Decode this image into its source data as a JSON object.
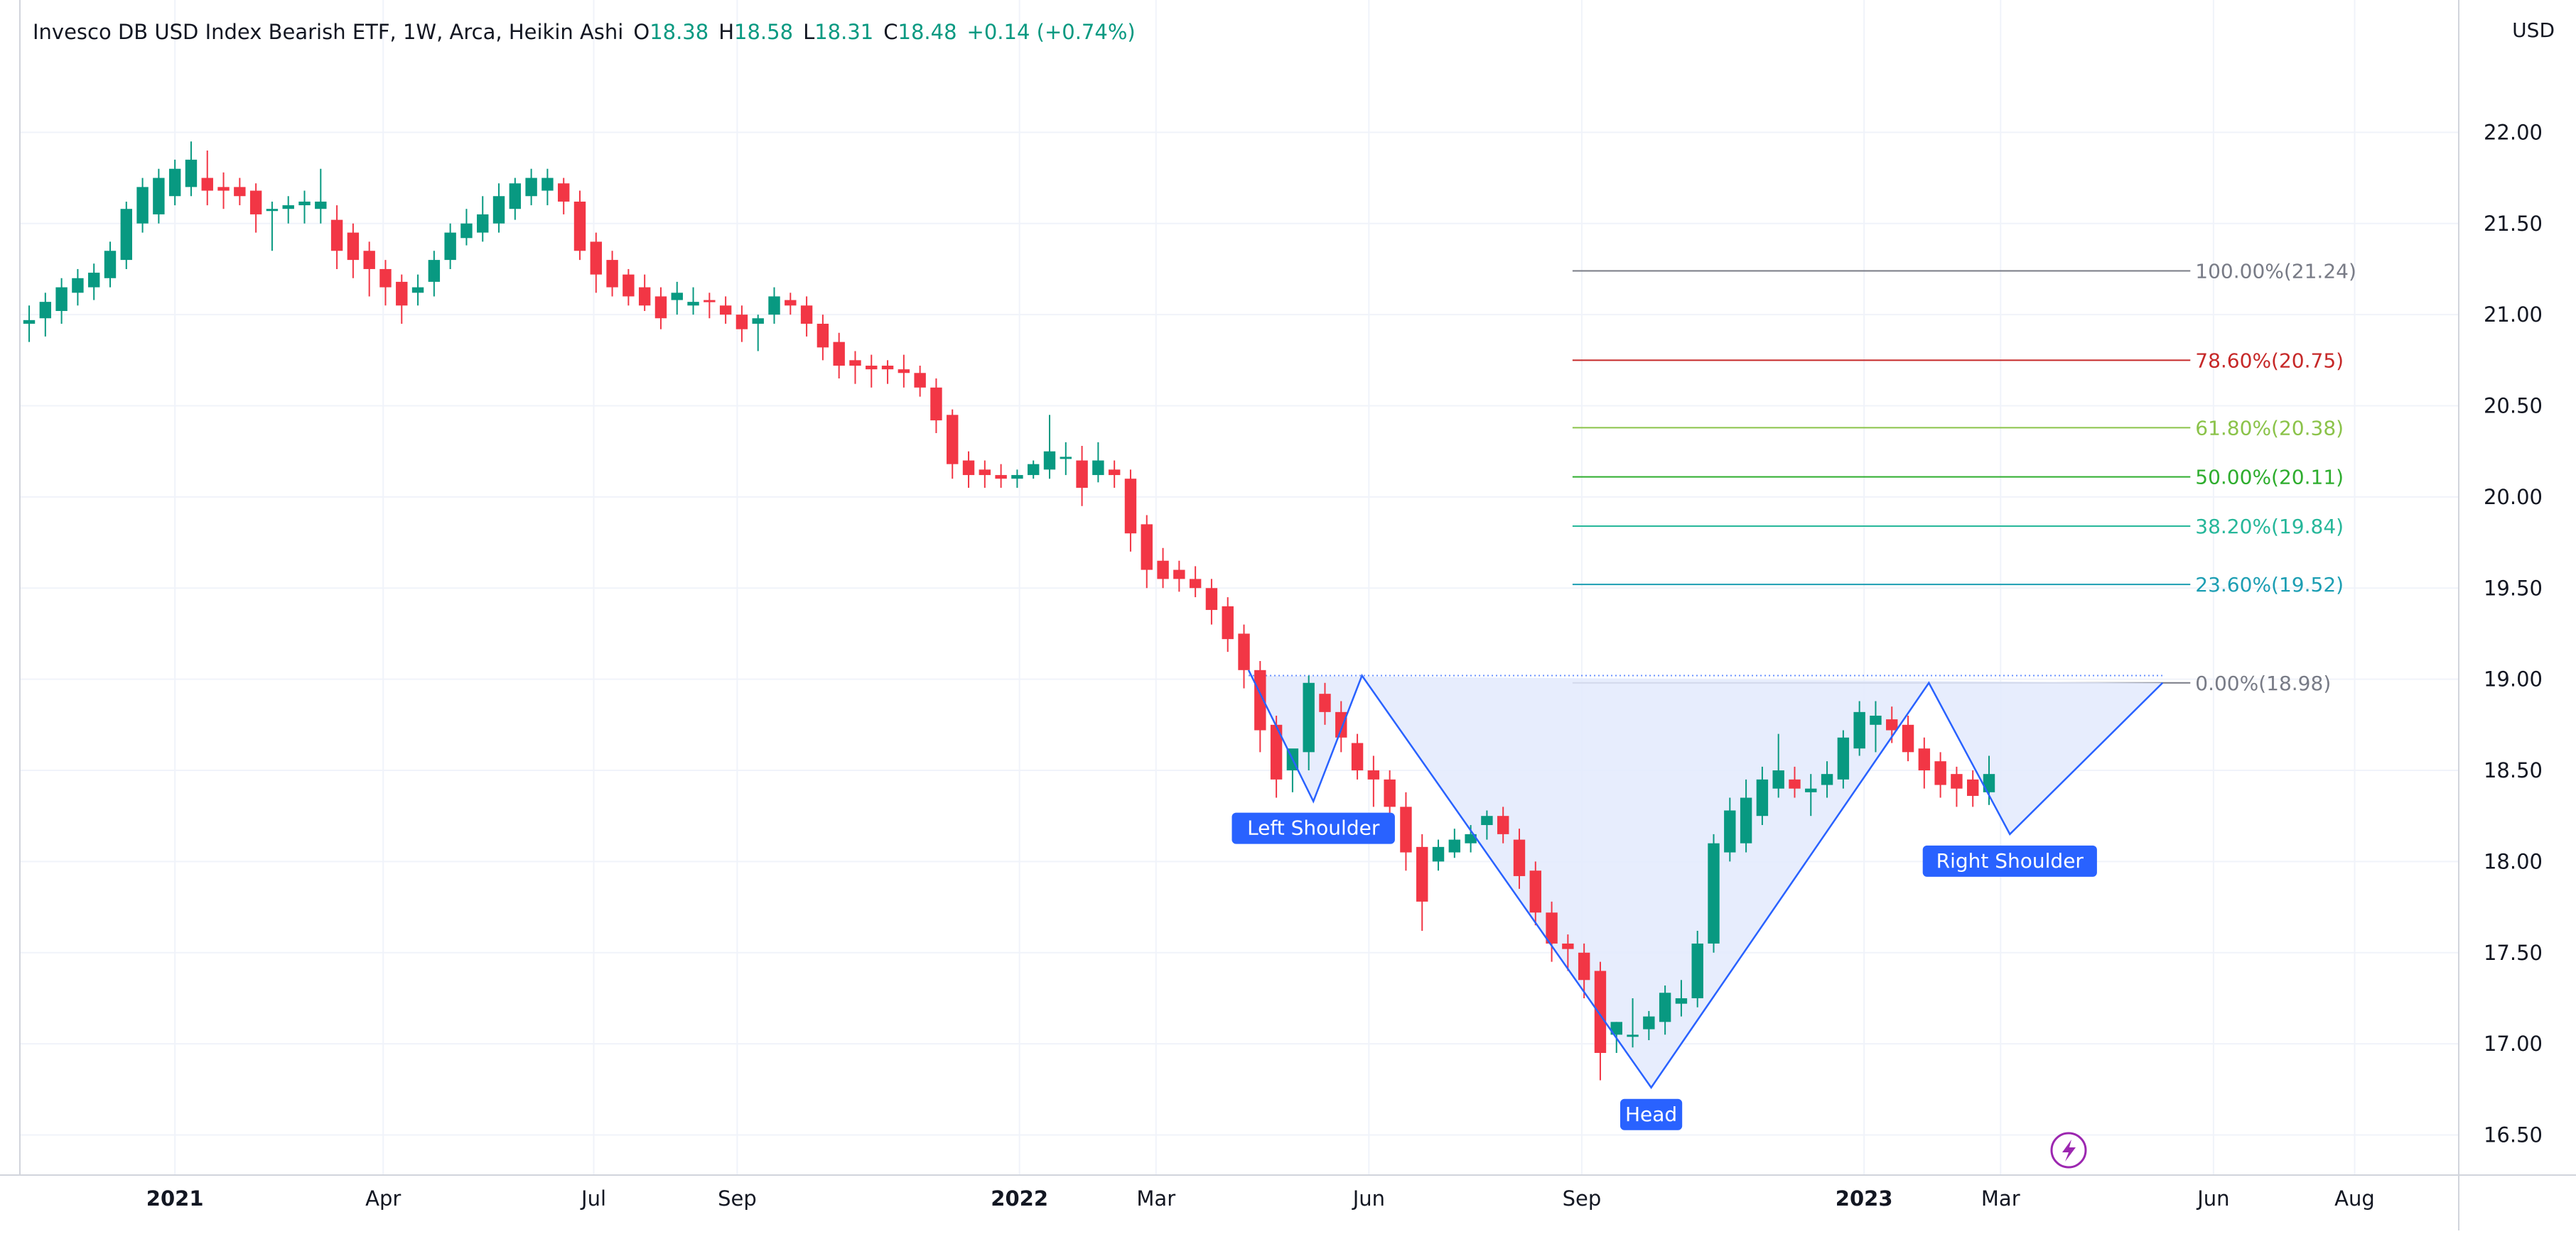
{
  "header": {
    "title": "Invesco DB USD Index Bearish ETF, 1W, Arca, Heikin Ashi",
    "o_label": "O",
    "o_value": "18.38",
    "h_label": "H",
    "h_value": "18.58",
    "l_label": "L",
    "l_value": "18.31",
    "c_label": "C",
    "c_value": "18.48",
    "change": "+0.14 (+0.74%)"
  },
  "currency": "USD",
  "colors": {
    "up": "#089981",
    "down": "#F23645",
    "pattern": "#2962FF",
    "fill": "#E3EAFD",
    "grid": "#F0F3FA",
    "text": "#131722"
  },
  "chart_data": {
    "type": "candlestick",
    "title": "Invesco DB USD Index Bearish ETF, 1W, Arca, Heikin Ashi",
    "ylabel": "USD",
    "ylim": [
      16.28,
      22.5
    ],
    "y_ticks": [
      "22.00",
      "21.50",
      "21.00",
      "20.50",
      "20.00",
      "19.50",
      "19.00",
      "18.50",
      "18.00",
      "17.50",
      "17.00",
      "16.50"
    ],
    "x_ticks": [
      {
        "label": "2021",
        "date": "2021-01-01",
        "bold": true
      },
      {
        "label": "Apr",
        "date": "2021-04-01",
        "bold": false
      },
      {
        "label": "Jul",
        "date": "2021-07-01",
        "bold": false
      },
      {
        "label": "Sep",
        "date": "2021-09-01",
        "bold": false
      },
      {
        "label": "2022",
        "date": "2022-01-01",
        "bold": true
      },
      {
        "label": "Mar",
        "date": "2022-03-01",
        "bold": false
      },
      {
        "label": "Jun",
        "date": "2022-06-01",
        "bold": false
      },
      {
        "label": "Sep",
        "date": "2022-09-01",
        "bold": false
      },
      {
        "label": "2023",
        "date": "2023-01-01",
        "bold": true
      },
      {
        "label": "Mar",
        "date": "2023-03-01",
        "bold": false
      },
      {
        "label": "Jun",
        "date": "2023-06-01",
        "bold": false
      },
      {
        "label": "Aug",
        "date": "2023-08-01",
        "bold": false
      }
    ],
    "x_range": [
      "2020-10-26",
      "2023-09-15"
    ],
    "first_candle_date": "2020-10-30",
    "candle_interval": "1W",
    "candles": [
      [
        20.95,
        21.05,
        20.85,
        20.97
      ],
      [
        20.98,
        21.12,
        20.88,
        21.07
      ],
      [
        21.02,
        21.2,
        20.95,
        21.15
      ],
      [
        21.12,
        21.25,
        21.05,
        21.2
      ],
      [
        21.15,
        21.28,
        21.08,
        21.23
      ],
      [
        21.2,
        21.4,
        21.15,
        21.35
      ],
      [
        21.3,
        21.62,
        21.25,
        21.58
      ],
      [
        21.5,
        21.75,
        21.45,
        21.7
      ],
      [
        21.55,
        21.8,
        21.5,
        21.75
      ],
      [
        21.65,
        21.85,
        21.6,
        21.8
      ],
      [
        21.7,
        21.95,
        21.65,
        21.85
      ],
      [
        21.75,
        21.9,
        21.6,
        21.68
      ],
      [
        21.7,
        21.78,
        21.58,
        21.68
      ],
      [
        21.7,
        21.75,
        21.6,
        21.65
      ],
      [
        21.68,
        21.72,
        21.45,
        21.55
      ],
      [
        21.58,
        21.62,
        21.35,
        21.58
      ],
      [
        21.58,
        21.65,
        21.5,
        21.6
      ],
      [
        21.6,
        21.68,
        21.5,
        21.62
      ],
      [
        21.58,
        21.8,
        21.5,
        21.62
      ],
      [
        21.52,
        21.6,
        21.25,
        21.35
      ],
      [
        21.45,
        21.5,
        21.2,
        21.3
      ],
      [
        21.35,
        21.4,
        21.1,
        21.25
      ],
      [
        21.25,
        21.3,
        21.05,
        21.15
      ],
      [
        21.18,
        21.22,
        20.95,
        21.05
      ],
      [
        21.12,
        21.22,
        21.05,
        21.15
      ],
      [
        21.18,
        21.35,
        21.1,
        21.3
      ],
      [
        21.3,
        21.5,
        21.25,
        21.45
      ],
      [
        21.42,
        21.58,
        21.38,
        21.5
      ],
      [
        21.45,
        21.65,
        21.4,
        21.55
      ],
      [
        21.5,
        21.72,
        21.45,
        21.65
      ],
      [
        21.58,
        21.75,
        21.52,
        21.72
      ],
      [
        21.65,
        21.8,
        21.6,
        21.75
      ],
      [
        21.68,
        21.8,
        21.6,
        21.75
      ],
      [
        21.72,
        21.75,
        21.55,
        21.62
      ],
      [
        21.62,
        21.68,
        21.3,
        21.35
      ],
      [
        21.4,
        21.45,
        21.12,
        21.22
      ],
      [
        21.3,
        21.35,
        21.1,
        21.15
      ],
      [
        21.22,
        21.25,
        21.05,
        21.1
      ],
      [
        21.15,
        21.22,
        21.02,
        21.05
      ],
      [
        21.1,
        21.15,
        20.92,
        20.98
      ],
      [
        21.08,
        21.18,
        21.0,
        21.12
      ],
      [
        21.05,
        21.15,
        21.0,
        21.07
      ],
      [
        21.08,
        21.12,
        20.98,
        21.07
      ],
      [
        21.05,
        21.1,
        20.95,
        21.0
      ],
      [
        21.0,
        21.05,
        20.85,
        20.92
      ],
      [
        20.95,
        21.0,
        20.8,
        20.98
      ],
      [
        21.0,
        21.15,
        20.95,
        21.1
      ],
      [
        21.08,
        21.12,
        21.0,
        21.05
      ],
      [
        21.05,
        21.1,
        20.88,
        20.95
      ],
      [
        20.95,
        21.0,
        20.75,
        20.82
      ],
      [
        20.85,
        20.9,
        20.65,
        20.72
      ],
      [
        20.75,
        20.8,
        20.62,
        20.72
      ],
      [
        20.72,
        20.78,
        20.6,
        20.7
      ],
      [
        20.72,
        20.75,
        20.62,
        20.7
      ],
      [
        20.7,
        20.78,
        20.6,
        20.68
      ],
      [
        20.68,
        20.72,
        20.55,
        20.6
      ],
      [
        20.6,
        20.65,
        20.35,
        20.42
      ],
      [
        20.45,
        20.48,
        20.1,
        20.18
      ],
      [
        20.2,
        20.25,
        20.05,
        20.12
      ],
      [
        20.15,
        20.2,
        20.05,
        20.12
      ],
      [
        20.12,
        20.18,
        20.05,
        20.1
      ],
      [
        20.1,
        20.15,
        20.05,
        20.12
      ],
      [
        20.12,
        20.2,
        20.1,
        20.18
      ],
      [
        20.15,
        20.45,
        20.1,
        20.25
      ],
      [
        20.22,
        20.3,
        20.12,
        20.22
      ],
      [
        20.2,
        20.28,
        19.95,
        20.05
      ],
      [
        20.12,
        20.3,
        20.08,
        20.2
      ],
      [
        20.15,
        20.2,
        20.05,
        20.12
      ],
      [
        20.1,
        20.15,
        19.7,
        19.8
      ],
      [
        19.85,
        19.9,
        19.5,
        19.6
      ],
      [
        19.65,
        19.72,
        19.5,
        19.55
      ],
      [
        19.6,
        19.65,
        19.48,
        19.55
      ],
      [
        19.55,
        19.62,
        19.45,
        19.5
      ],
      [
        19.5,
        19.55,
        19.3,
        19.38
      ],
      [
        19.4,
        19.45,
        19.15,
        19.22
      ],
      [
        19.25,
        19.3,
        18.95,
        19.05
      ],
      [
        19.05,
        19.1,
        18.6,
        18.72
      ],
      [
        18.75,
        18.8,
        18.35,
        18.45
      ],
      [
        18.5,
        18.6,
        18.38,
        18.62
      ],
      [
        18.6,
        19.02,
        18.5,
        18.98
      ],
      [
        18.92,
        18.98,
        18.75,
        18.82
      ],
      [
        18.82,
        18.88,
        18.6,
        18.68
      ],
      [
        18.65,
        18.7,
        18.45,
        18.5
      ],
      [
        18.5,
        18.58,
        18.3,
        18.45
      ],
      [
        18.45,
        18.5,
        18.2,
        18.3
      ],
      [
        18.3,
        18.38,
        17.95,
        18.05
      ],
      [
        18.08,
        18.15,
        17.62,
        17.78
      ],
      [
        18.0,
        18.12,
        17.95,
        18.08
      ],
      [
        18.05,
        18.18,
        18.02,
        18.12
      ],
      [
        18.1,
        18.2,
        18.05,
        18.15
      ],
      [
        18.2,
        18.28,
        18.12,
        18.25
      ],
      [
        18.25,
        18.3,
        18.1,
        18.15
      ],
      [
        18.12,
        18.18,
        17.85,
        17.92
      ],
      [
        17.95,
        18.0,
        17.65,
        17.72
      ],
      [
        17.72,
        17.78,
        17.45,
        17.55
      ],
      [
        17.55,
        17.6,
        17.4,
        17.52
      ],
      [
        17.5,
        17.55,
        17.25,
        17.35
      ],
      [
        17.4,
        17.45,
        16.8,
        16.95
      ],
      [
        17.05,
        17.12,
        16.95,
        17.12
      ],
      [
        17.05,
        17.25,
        16.98,
        17.05
      ],
      [
        17.08,
        17.18,
        17.02,
        17.15
      ],
      [
        17.12,
        17.32,
        17.05,
        17.28
      ],
      [
        17.22,
        17.35,
        17.15,
        17.25
      ],
      [
        17.25,
        17.62,
        17.2,
        17.55
      ],
      [
        17.55,
        18.15,
        17.5,
        18.1
      ],
      [
        18.05,
        18.35,
        18.0,
        18.28
      ],
      [
        18.1,
        18.45,
        18.05,
        18.35
      ],
      [
        18.25,
        18.52,
        18.2,
        18.45
      ],
      [
        18.4,
        18.7,
        18.35,
        18.5
      ],
      [
        18.45,
        18.52,
        18.35,
        18.4
      ],
      [
        18.38,
        18.48,
        18.25,
        18.4
      ],
      [
        18.42,
        18.55,
        18.35,
        18.48
      ],
      [
        18.45,
        18.72,
        18.4,
        18.68
      ],
      [
        18.62,
        18.88,
        18.58,
        18.82
      ],
      [
        18.75,
        18.88,
        18.6,
        18.8
      ],
      [
        18.78,
        18.85,
        18.65,
        18.72
      ],
      [
        18.75,
        18.8,
        18.55,
        18.6
      ],
      [
        18.62,
        18.68,
        18.4,
        18.5
      ],
      [
        18.55,
        18.6,
        18.35,
        18.42
      ],
      [
        18.48,
        18.52,
        18.3,
        18.4
      ],
      [
        18.45,
        18.5,
        18.3,
        18.36
      ],
      [
        18.38,
        18.58,
        18.31,
        18.48
      ]
    ],
    "fibonacci": [
      {
        "ratio": "100.00%",
        "price": 21.24,
        "label": "100.00%(21.24)",
        "color": "#787B86"
      },
      {
        "ratio": "78.60%",
        "price": 20.75,
        "label": "78.60%(20.75)",
        "color": "#C62828"
      },
      {
        "ratio": "61.80%",
        "price": 20.38,
        "label": "61.80%(20.38)",
        "color": "#8BC34A"
      },
      {
        "ratio": "50.00%",
        "price": 20.11,
        "label": "50.00%(20.11)",
        "color": "#2EAD2E"
      },
      {
        "ratio": "38.20%",
        "price": 19.84,
        "label": "38.20%(19.84)",
        "color": "#26B79A"
      },
      {
        "ratio": "23.60%",
        "price": 19.52,
        "label": "23.60%(19.52)",
        "color": "#1C9EB3"
      },
      {
        "ratio": "0.00%",
        "price": 18.98,
        "label": "0.00%(18.98)",
        "color": "#787B86"
      }
    ],
    "fibonacci_start_date": "2022-08-28",
    "fibonacci_end_date": "2023-05-22",
    "head_and_shoulders": {
      "points": [
        {
          "date": "2022-04-10",
          "price": 19.05
        },
        {
          "date": "2022-05-08",
          "price": 18.33
        },
        {
          "date": "2022-05-29",
          "price": 19.02
        },
        {
          "date": "2022-10-01",
          "price": 16.76
        },
        {
          "date": "2023-01-29",
          "price": 18.98
        },
        {
          "date": "2023-03-05",
          "price": 18.15
        },
        {
          "date": "2023-05-10",
          "price": 18.98
        }
      ],
      "labels": [
        {
          "text": "Left Shoulder",
          "date": "2022-05-08",
          "price": 18.33
        },
        {
          "text": "Head",
          "date": "2022-10-01",
          "price": 16.76
        },
        {
          "text": "Right Shoulder",
          "date": "2023-03-05",
          "price": 18.15
        }
      ]
    }
  }
}
